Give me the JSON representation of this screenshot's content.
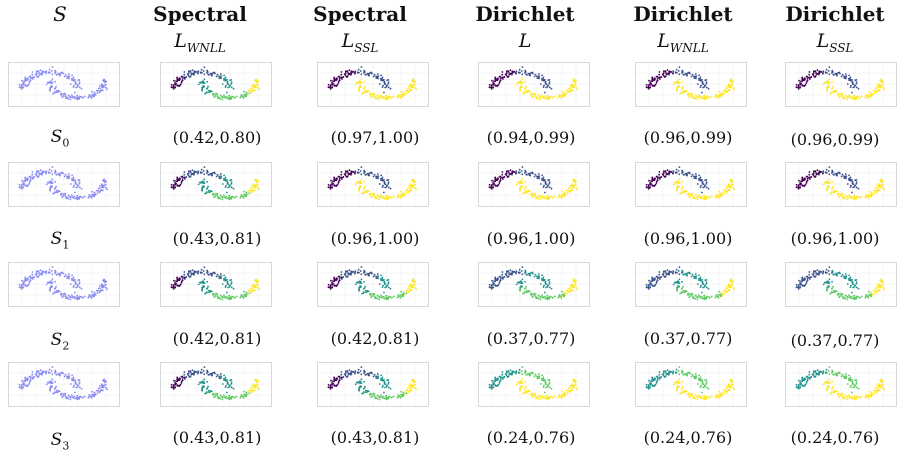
{
  "columns": [
    {
      "title": "S",
      "sub_main": "",
      "sub_index": ""
    },
    {
      "title": "Spectral",
      "sub_main": "L",
      "sub_index": "WNLL"
    },
    {
      "title": "Spectral",
      "sub_main": "L",
      "sub_index": "SSL"
    },
    {
      "title": "Dirichlet",
      "sub_main": "L",
      "sub_index": ""
    },
    {
      "title": "Dirichlet",
      "sub_main": "L",
      "sub_index": "WNLL"
    },
    {
      "title": "Dirichlet",
      "sub_main": "L",
      "sub_index": "SSL"
    }
  ],
  "rows": [
    {
      "name_main": "S",
      "name_index": "0",
      "scores": [
        "(0.42,0.80)",
        "(0.97,1.00)",
        "(0.94,0.99)",
        "(0.96,0.99)",
        "(0.96,0.99)"
      ]
    },
    {
      "name_main": "S",
      "name_index": "1",
      "scores": [
        "(0.43,0.81)",
        "(0.96,1.00)",
        "(0.96,1.00)",
        "(0.96,1.00)",
        "(0.96,1.00)"
      ]
    },
    {
      "name_main": "S",
      "name_index": "2",
      "scores": [
        "(0.42,0.81)",
        "(0.42,0.81)",
        "(0.37,0.77)",
        "(0.37,0.77)",
        "(0.37,0.77)"
      ]
    },
    {
      "name_main": "S",
      "name_index": "3",
      "scores": [
        "(0.43,0.81)",
        "(0.43,0.81)",
        "(0.24,0.76)",
        "(0.24,0.76)",
        "(0.24,0.76)"
      ]
    }
  ],
  "colors": {
    "input_points": "#8a8cf0",
    "viridis": [
      "#440154",
      "#3b528b",
      "#21918c",
      "#5ec962",
      "#fde725"
    ]
  }
}
